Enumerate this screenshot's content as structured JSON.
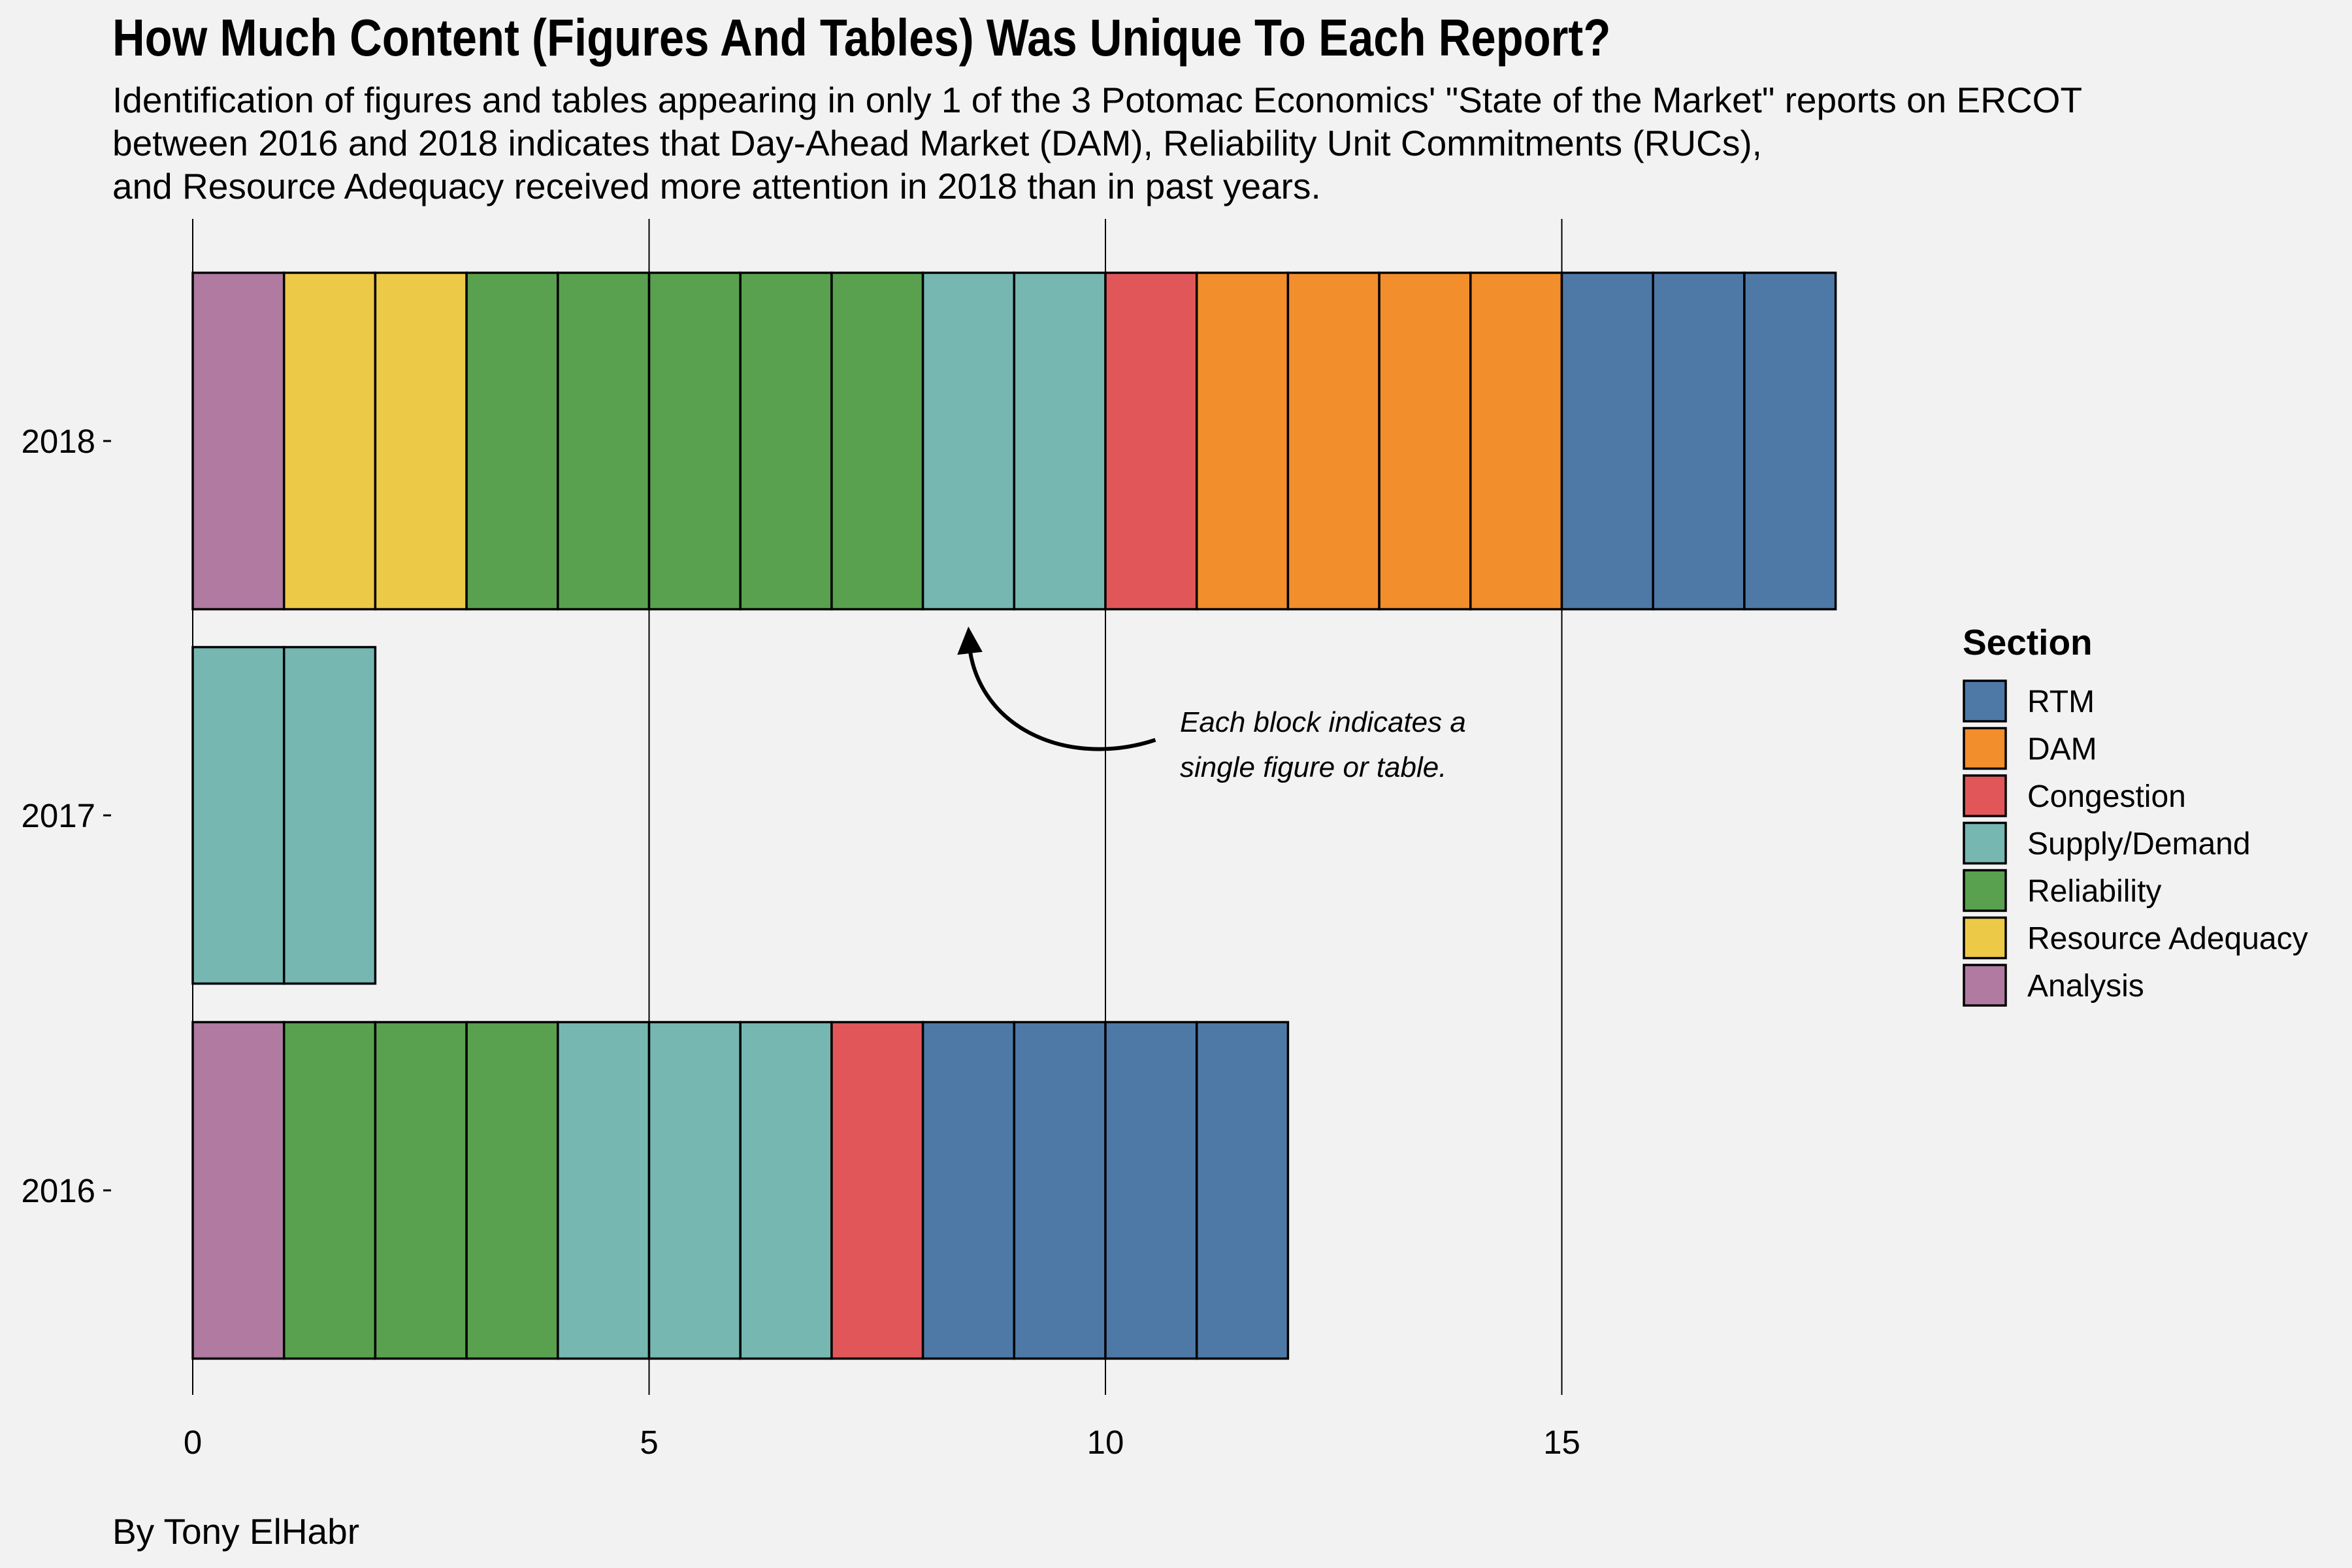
{
  "title": "How Much Content (Figures And Tables) Was Unique To Each Report?",
  "subtitle_lines": [
    "Identification of figures and tables appearing in only 1 of the 3 Potomac Economics' \"State of the Market\" reports on ERCOT",
    "between 2016 and 2018 indicates that Day-Ahead Market (DAM), Reliability Unit Commitments (RUCs),",
    "and Resource Adequacy received more attention in 2018 than in past years."
  ],
  "caption": "By Tony ElHabr",
  "chart_data": {
    "type": "bar",
    "orientation": "horizontal",
    "stacked": true,
    "categories": [
      "2018",
      "2017",
      "2016"
    ],
    "xlim": [
      0,
      18
    ],
    "x_ticks": [
      0,
      5,
      10,
      15
    ],
    "grid": "vertical major lines",
    "series_units": "count of unique figures and tables; each block = 1",
    "series": [
      {
        "name": "Analysis",
        "color": "#b07aa1",
        "values": [
          1,
          0,
          1
        ]
      },
      {
        "name": "Resource Adequacy",
        "color": "#edc948",
        "values": [
          2,
          0,
          0
        ]
      },
      {
        "name": "Reliability",
        "color": "#59a14f",
        "values": [
          5,
          0,
          3
        ]
      },
      {
        "name": "Supply/Demand",
        "color": "#76b7b2",
        "values": [
          2,
          2,
          3
        ]
      },
      {
        "name": "Congestion",
        "color": "#e15759",
        "values": [
          1,
          0,
          1
        ]
      },
      {
        "name": "DAM",
        "color": "#f28e2b",
        "values": [
          4,
          0,
          0
        ]
      },
      {
        "name": "RTM",
        "color": "#4e79a7",
        "values": [
          3,
          0,
          4
        ]
      }
    ],
    "legend": {
      "title": "Section",
      "placement": "right",
      "order": [
        "RTM",
        "DAM",
        "Congestion",
        "Supply/Demand",
        "Reliability",
        "Resource Adequacy",
        "Analysis"
      ]
    },
    "annotation": {
      "lines": [
        "Each block indicates a",
        "single figure or table."
      ],
      "points_to": {
        "category": "2018",
        "x": 8.5
      }
    }
  }
}
